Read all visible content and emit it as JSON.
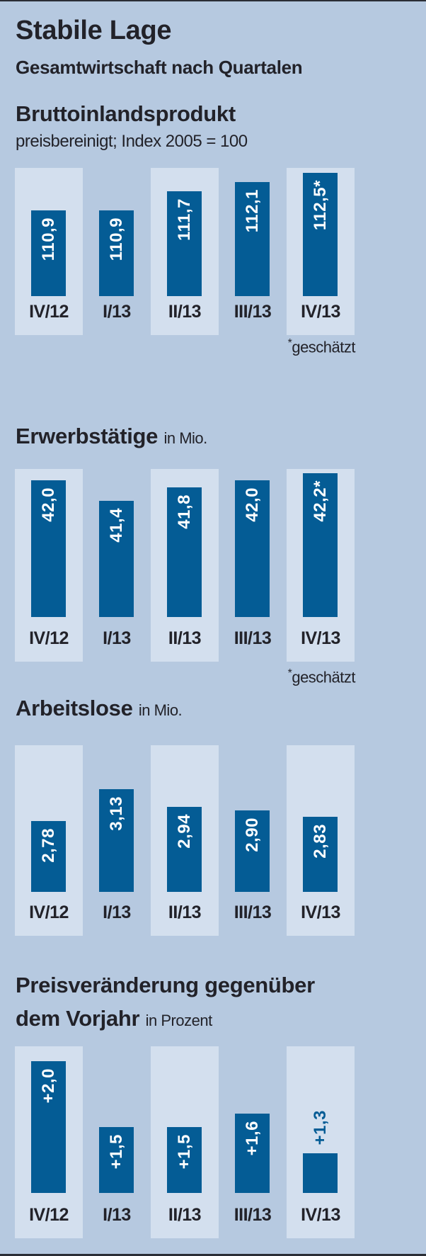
{
  "header": {
    "title": "Stabile Lage",
    "subtitle": "Gesamtwirtschaft nach Quartalen"
  },
  "colors": {
    "background": "#b6c9e0",
    "panel": "#d3dfee",
    "bar": "#045c95",
    "text": "#222229"
  },
  "chart_data": [
    {
      "type": "bar",
      "title": "Bruttoinlandsprodukt",
      "subtitle": "preisbereinigt; Index 2005 = 100",
      "unit": "",
      "categories": [
        "IV/12",
        "I/13",
        "II/13",
        "III/13",
        "IV/13"
      ],
      "values": [
        110.9,
        110.9,
        111.7,
        112.1,
        112.5
      ],
      "labels": [
        "110,9",
        "110,9",
        "111,7",
        "112,1",
        "112,5*"
      ],
      "note": "geschätzt",
      "note_mark": "*"
    },
    {
      "type": "bar",
      "title": "Erwerbstätige",
      "unit": "in Mio.",
      "categories": [
        "IV/12",
        "I/13",
        "II/13",
        "III/13",
        "IV/13"
      ],
      "values": [
        42.0,
        41.4,
        41.8,
        42.0,
        42.2
      ],
      "labels": [
        "42,0",
        "41,4",
        "41,8",
        "42,0",
        "42,2*"
      ],
      "note": "geschätzt",
      "note_mark": "*"
    },
    {
      "type": "bar",
      "title": "Arbeitslose",
      "unit": "in Mio.",
      "categories": [
        "IV/12",
        "I/13",
        "II/13",
        "III/13",
        "IV/13"
      ],
      "values": [
        2.78,
        3.13,
        2.94,
        2.9,
        2.83
      ],
      "labels": [
        "2,78",
        "3,13",
        "2,94",
        "2,90",
        "2,83"
      ]
    },
    {
      "type": "bar",
      "title": "Preisveränderung gegenüber",
      "title_line2": "dem Vorjahr",
      "unit": "in Prozent",
      "categories": [
        "IV/12",
        "I/13",
        "II/13",
        "III/13",
        "IV/13"
      ],
      "values": [
        2.0,
        1.5,
        1.5,
        1.6,
        1.3
      ],
      "labels": [
        "+2,0",
        "+1,5",
        "+1,5",
        "+1,6",
        "+1,3"
      ]
    }
  ]
}
